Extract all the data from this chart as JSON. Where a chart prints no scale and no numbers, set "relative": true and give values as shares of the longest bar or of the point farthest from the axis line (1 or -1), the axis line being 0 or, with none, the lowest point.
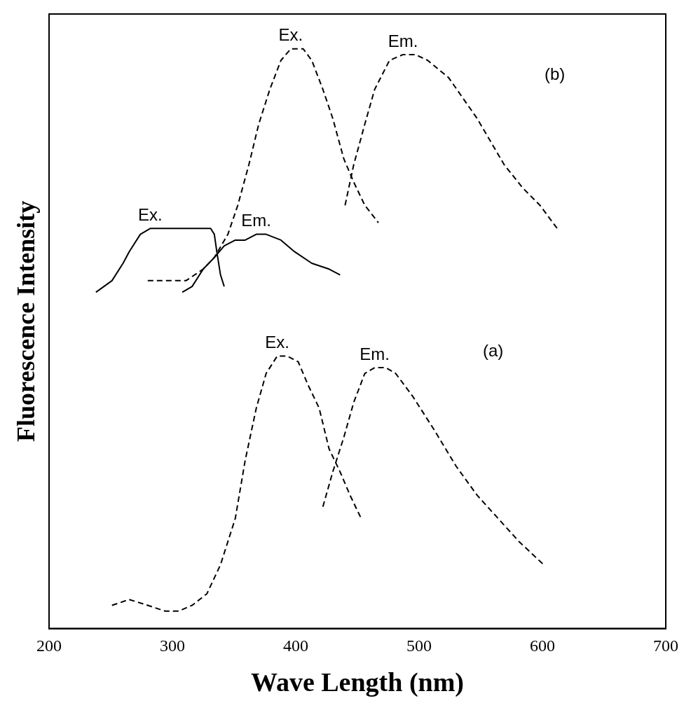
{
  "chart_data": {
    "type": "line",
    "relative": true,
    "xlabel": "Wave Length (nm)",
    "ylabel": "Fluorescence Intensity",
    "xlim": [
      200,
      700
    ],
    "xticks": [
      200,
      300,
      400,
      500,
      600,
      700
    ],
    "grid": false,
    "legend": false,
    "marker": "none",
    "series": [
      {
        "name": "Ex.",
        "color": "#000000",
        "line_style": "dashed",
        "x": [
          251,
          265,
          280,
          294,
          305,
          316,
          328,
          339,
          351,
          359,
          368,
          376,
          385,
          393,
          402,
          410,
          419,
          427,
          436,
          444,
          453
        ],
        "values": [
          0.04,
          0.05,
          0.04,
          0.03,
          0.03,
          0.04,
          0.06,
          0.11,
          0.19,
          0.29,
          0.38,
          0.44,
          0.47,
          0.47,
          0.46,
          0.42,
          0.38,
          0.31,
          0.27,
          0.23,
          0.19
        ]
      },
      {
        "name": "Em.",
        "color": "#000000",
        "line_style": "dashed",
        "x": [
          422,
          430,
          439,
          447,
          456,
          464,
          473,
          481,
          495,
          513,
          530,
          547,
          564,
          581,
          601
        ],
        "values": [
          0.21,
          0.27,
          0.33,
          0.39,
          0.44,
          0.45,
          0.45,
          0.44,
          0.4,
          0.34,
          0.28,
          0.23,
          0.19,
          0.15,
          0.11
        ]
      },
      {
        "name": "Ex.",
        "color": "#000000",
        "line_style": "solid",
        "x": [
          238,
          251,
          260,
          265,
          274,
          282,
          294,
          305,
          316,
          331,
          334,
          336,
          339,
          342
        ],
        "values": [
          0.58,
          0.6,
          0.63,
          0.65,
          0.68,
          0.69,
          0.69,
          0.69,
          0.69,
          0.69,
          0.68,
          0.65,
          0.61,
          0.59
        ]
      },
      {
        "name": "Em.",
        "color": "#000000",
        "line_style": "solid",
        "x": [
          308,
          316,
          325,
          334,
          342,
          351,
          359,
          368,
          376,
          388,
          399,
          413,
          427,
          436
        ],
        "values": [
          0.58,
          0.59,
          0.62,
          0.64,
          0.66,
          0.67,
          0.67,
          0.68,
          0.68,
          0.67,
          0.65,
          0.63,
          0.62,
          0.61
        ]
      },
      {
        "name": "Ex.",
        "color": "#000000",
        "line_style": "dashed",
        "x": [
          280,
          297,
          311,
          325,
          334,
          345,
          353,
          362,
          370,
          379,
          388,
          396,
          406,
          413,
          422,
          430,
          439,
          447,
          456,
          467
        ],
        "values": [
          0.6,
          0.6,
          0.6,
          0.62,
          0.64,
          0.68,
          0.73,
          0.8,
          0.87,
          0.93,
          0.98,
          1,
          1,
          0.98,
          0.93,
          0.88,
          0.81,
          0.77,
          0.73,
          0.7
        ]
      },
      {
        "name": "Em.",
        "color": "#000000",
        "line_style": "dashed",
        "x": [
          440,
          447,
          456,
          464,
          476,
          487,
          497,
          507,
          524,
          547,
          569,
          584,
          598,
          612
        ],
        "values": [
          0.73,
          0.8,
          0.87,
          0.93,
          0.98,
          0.99,
          0.99,
          0.98,
          0.95,
          0.88,
          0.8,
          0.76,
          0.73,
          0.69
        ]
      }
    ],
    "annotations": [
      "(b)",
      "(a)"
    ]
  }
}
